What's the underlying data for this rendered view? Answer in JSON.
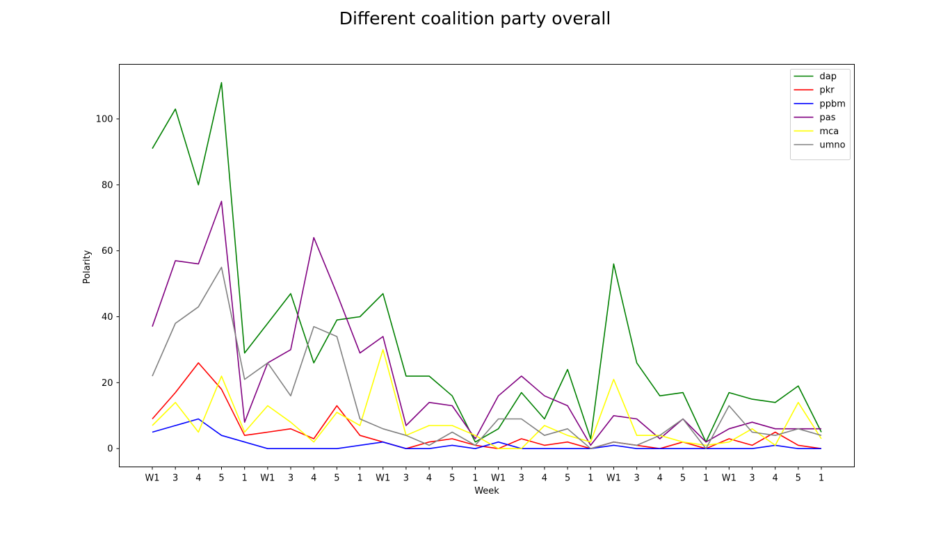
{
  "chart_data": {
    "type": "line",
    "title": "Different coalition party overall",
    "xlabel": "Week",
    "ylabel": "Polarity",
    "categories": [
      "W1",
      "3",
      "4",
      "5",
      "1",
      "W1",
      "3",
      "4",
      "5",
      "1",
      "W1",
      "3",
      "4",
      "5",
      "1",
      "W1",
      "3",
      "4",
      "5",
      "1",
      "W1",
      "3",
      "4",
      "5",
      "1",
      "W1",
      "3",
      "4",
      "5",
      "1"
    ],
    "yticks": [
      0,
      20,
      40,
      60,
      80,
      100
    ],
    "ylim": [
      -5.55,
      116.55
    ],
    "grid": false,
    "legend_position": "top-right",
    "series": [
      {
        "name": "dap",
        "color": "#008000",
        "values": [
          91,
          103,
          80,
          111,
          29,
          38,
          47,
          26,
          39,
          40,
          47,
          22,
          22,
          16,
          2,
          6,
          17,
          9,
          24,
          3,
          56,
          26,
          16,
          17,
          2,
          17,
          15,
          14,
          19,
          5
        ]
      },
      {
        "name": "pkr",
        "color": "#ff0000",
        "values": [
          9,
          17,
          26,
          18,
          4,
          5,
          6,
          3,
          13,
          4,
          2,
          0,
          2,
          3,
          1,
          0,
          3,
          1,
          2,
          0,
          2,
          1,
          0,
          2,
          0,
          3,
          1,
          5,
          1,
          0
        ]
      },
      {
        "name": "ppbm",
        "color": "#0000ff",
        "values": [
          5,
          7,
          9,
          4,
          2,
          0,
          0,
          0,
          0,
          1,
          2,
          0,
          0,
          1,
          0,
          2,
          0,
          0,
          0,
          0,
          1,
          0,
          0,
          0,
          0,
          0,
          0,
          1,
          0,
          0
        ]
      },
      {
        "name": "pas",
        "color": "#800080",
        "values": [
          37,
          57,
          56,
          75,
          8,
          26,
          30,
          64,
          47,
          29,
          34,
          7,
          14,
          13,
          3,
          16,
          22,
          16,
          13,
          1,
          10,
          9,
          3,
          9,
          2,
          6,
          8,
          6,
          6,
          6
        ]
      },
      {
        "name": "mca",
        "color": "#ffff00",
        "values": [
          7,
          14,
          5,
          22,
          5,
          13,
          8,
          2,
          11,
          7,
          30,
          4,
          7,
          7,
          4,
          0,
          0,
          7,
          4,
          2,
          21,
          4,
          4,
          2,
          1,
          2,
          6,
          1,
          14,
          3
        ]
      },
      {
        "name": "umno",
        "color": "#808080",
        "values": [
          22,
          38,
          43,
          55,
          21,
          26,
          16,
          37,
          34,
          9,
          6,
          4,
          1,
          5,
          1,
          9,
          9,
          4,
          6,
          0,
          2,
          1,
          4,
          9,
          0,
          13,
          5,
          4,
          6,
          4
        ]
      }
    ]
  }
}
